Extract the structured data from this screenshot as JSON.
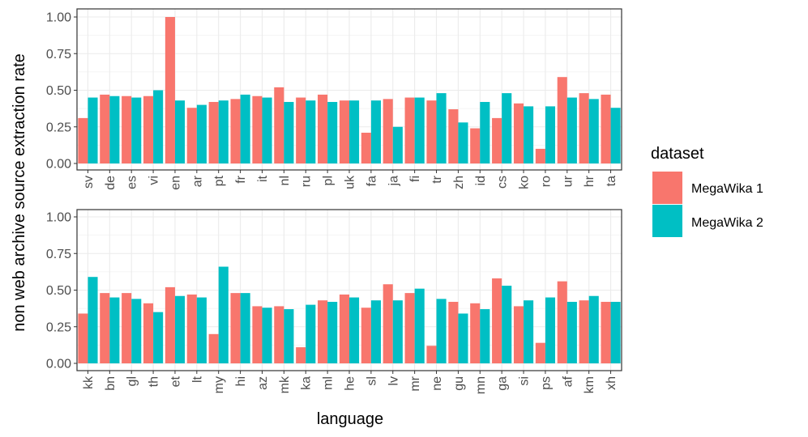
{
  "chart_data": {
    "type": "bar",
    "ylabel": "non web archive source extraction rate",
    "xlabel": "language",
    "ylim": [
      0,
      1
    ],
    "y_ticks": [
      "0.00",
      "0.25",
      "0.50",
      "0.75",
      "1.00"
    ],
    "grid": true,
    "legend": {
      "title": "dataset",
      "position": "right",
      "entries": [
        {
          "name": "MegaWika 1",
          "color": "#F8766D"
        },
        {
          "name": "MegaWika 2",
          "color": "#00BFC4"
        }
      ]
    },
    "panels": [
      {
        "categories": [
          "sv",
          "de",
          "es",
          "vi",
          "en",
          "ar",
          "pt",
          "fr",
          "it",
          "nl",
          "ru",
          "pl",
          "uk",
          "fa",
          "ja",
          "fi",
          "tr",
          "zh",
          "id",
          "cs",
          "ko",
          "ro",
          "ur",
          "hr",
          "ta"
        ],
        "series": [
          {
            "name": "MegaWika 1",
            "values": [
              0.31,
              0.47,
              0.46,
              0.46,
              1.0,
              0.38,
              0.42,
              0.44,
              0.46,
              0.52,
              0.45,
              0.47,
              0.43,
              0.21,
              0.44,
              0.45,
              0.43,
              0.37,
              0.24,
              0.31,
              0.41,
              0.1,
              0.59,
              0.48,
              0.47
            ]
          },
          {
            "name": "MegaWika 2",
            "values": [
              0.45,
              0.46,
              0.45,
              0.5,
              0.43,
              0.4,
              0.43,
              0.47,
              0.45,
              0.42,
              0.43,
              0.42,
              0.43,
              0.43,
              0.25,
              0.45,
              0.48,
              0.28,
              0.42,
              0.48,
              0.39,
              0.39,
              0.45,
              0.44,
              0.38
            ]
          }
        ]
      },
      {
        "categories": [
          "kk",
          "bn",
          "gl",
          "th",
          "et",
          "lt",
          "my",
          "hi",
          "az",
          "mk",
          "ka",
          "ml",
          "he",
          "sl",
          "lv",
          "mr",
          "ne",
          "gu",
          "mn",
          "ga",
          "si",
          "ps",
          "af",
          "km",
          "xh"
        ],
        "series": [
          {
            "name": "MegaWika 1",
            "values": [
              0.34,
              0.48,
              0.48,
              0.41,
              0.52,
              0.47,
              0.2,
              0.48,
              0.39,
              0.39,
              0.11,
              0.43,
              0.47,
              0.38,
              0.54,
              0.48,
              0.12,
              0.42,
              0.41,
              0.58,
              0.39,
              0.14,
              0.56,
              0.43,
              0.42
            ]
          },
          {
            "name": "MegaWika 2",
            "values": [
              0.59,
              0.45,
              0.44,
              0.35,
              0.46,
              0.45,
              0.66,
              0.48,
              0.38,
              0.37,
              0.4,
              0.42,
              0.45,
              0.43,
              0.43,
              0.51,
              0.44,
              0.34,
              0.37,
              0.53,
              0.43,
              0.45,
              0.42,
              0.46,
              0.42
            ]
          }
        ]
      }
    ]
  }
}
